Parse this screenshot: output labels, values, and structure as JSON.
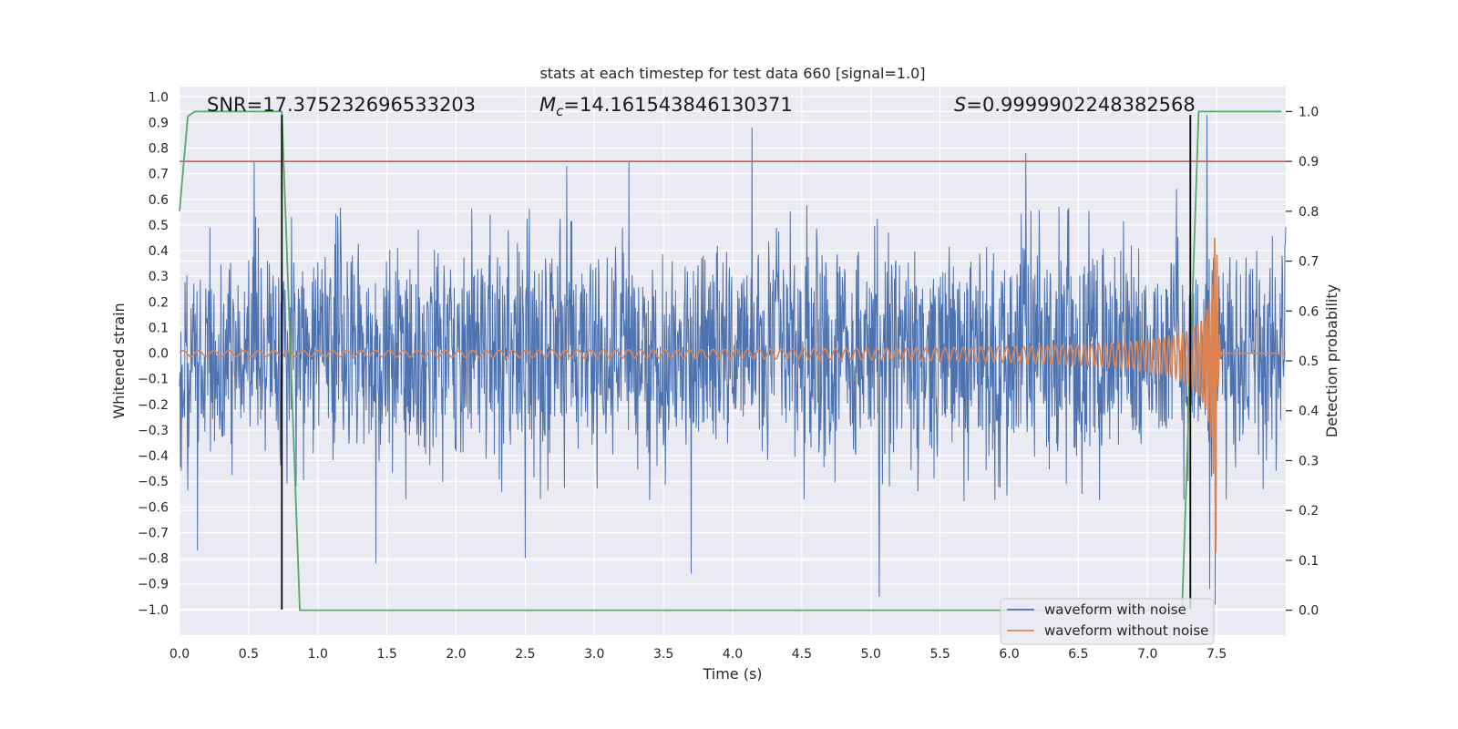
{
  "chart_data": {
    "type": "line",
    "title": "stats at each timestep for test data 660 [signal=1.0]",
    "xlabel": "Time (s)",
    "ylabel": "Whitened strain",
    "y2label": "Detection probability",
    "xlim": [
      0.0,
      8.0
    ],
    "ylim": [
      -1.1,
      1.04
    ],
    "y2lim": [
      -0.05,
      1.05
    ],
    "x_ticks": [
      "0.0",
      "0.5",
      "1.0",
      "1.5",
      "2.0",
      "2.5",
      "3.0",
      "3.5",
      "4.0",
      "4.5",
      "5.0",
      "5.5",
      "6.0",
      "6.5",
      "7.0",
      "7.5"
    ],
    "y_ticks": [
      "1.0",
      "0.9",
      "0.8",
      "0.7",
      "0.6",
      "0.5",
      "0.4",
      "0.3",
      "0.2",
      "0.1",
      "0.0",
      "−0.1",
      "−0.2",
      "−0.3",
      "−0.4",
      "−0.5",
      "−0.6",
      "−0.7",
      "−0.8",
      "−0.9",
      "−1.0"
    ],
    "y2_ticks": [
      "1.0",
      "0.9",
      "0.8",
      "0.7",
      "0.6",
      "0.5",
      "0.4",
      "0.3",
      "0.2",
      "0.1",
      "0.0"
    ],
    "grid": true,
    "legend_position": "bottom-right",
    "legend": [
      "waveform with noise",
      "waveform without noise"
    ],
    "annotations": {
      "snr": "SNR=17.375232696533203",
      "mc_symbol": "M",
      "mc_sub": "c",
      "mc_value": "=14.161543846130371",
      "s_symbol": "S",
      "s_value": "=0.9999902248382568"
    },
    "threshold_line": {
      "axis": "y2",
      "value": 0.9,
      "color": "#c44e52"
    },
    "vertical_lines": [
      {
        "x": 0.74,
        "y_from": -1.0,
        "y_to": 0.93,
        "color": "#000000"
      },
      {
        "x": 7.31,
        "y_from": -1.0,
        "y_to": 0.93,
        "color": "#000000"
      }
    ],
    "series": [
      {
        "name": "waveform with noise",
        "color": "#4c72b0",
        "kind": "noise",
        "x_range": [
          0.0,
          8.0
        ],
        "core_amplitude": 0.35,
        "typical_peak": 0.55,
        "notable_peaks": [
          {
            "x": 0.54,
            "y": 0.75
          },
          {
            "x": 0.74,
            "y": 0.93
          },
          {
            "x": 1.42,
            "y": -0.82
          },
          {
            "x": 2.5,
            "y": -0.8
          },
          {
            "x": 2.8,
            "y": 0.73
          },
          {
            "x": 3.25,
            "y": 0.75
          },
          {
            "x": 3.7,
            "y": -0.86
          },
          {
            "x": 4.14,
            "y": 0.88
          },
          {
            "x": 5.06,
            "y": -0.95
          },
          {
            "x": 6.12,
            "y": 0.78
          },
          {
            "x": 7.21,
            "y": 0.64
          },
          {
            "x": 7.43,
            "y": 0.93
          },
          {
            "x": 7.49,
            "y": -0.98
          },
          {
            "x": 0.13,
            "y": -0.77
          },
          {
            "x": 7.45,
            "y": -0.92
          }
        ]
      },
      {
        "name": "waveform without noise",
        "color": "#dd8452",
        "kind": "chirp",
        "x_range": [
          0.0,
          8.0
        ],
        "start_amplitude": 0.012,
        "merger_time": 7.5,
        "merger_amplitude_top": 0.55,
        "merger_amplitude_bottom": -0.78,
        "start_frequency_hz": 9.0,
        "end_frequency_hz": 55.0
      },
      {
        "name": "detection probability",
        "axis": "y2",
        "color": "#55a868",
        "x": [
          0.0,
          0.06,
          0.11,
          0.74,
          0.87,
          7.25,
          7.37,
          7.97
        ],
        "y": [
          0.8,
          0.99,
          1.0,
          1.0,
          0.0,
          0.0,
          1.0,
          1.0
        ]
      }
    ]
  }
}
